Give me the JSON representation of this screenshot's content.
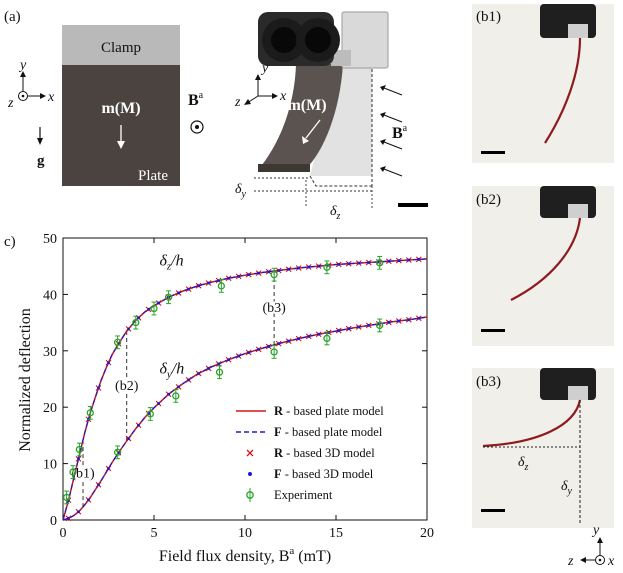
{
  "panel_labels": {
    "a": "(a)",
    "c": "c)",
    "b1": "(b1)",
    "b2": "(b2)",
    "b3": "(b3)"
  },
  "schematic": {
    "clamp": "Clamp",
    "plate": "Plate",
    "magnetization": "m(M)",
    "field": "B",
    "field_sup": "a",
    "gravity": "g",
    "axis_y": "y",
    "axis_x": "x",
    "axis_z": "z"
  },
  "photo": {
    "magnetization": "m(M)",
    "field": "B",
    "field_sup": "a",
    "delta_y": "δ",
    "delta_y_sub": "y",
    "delta_z": "δ",
    "delta_z_sub": "z",
    "axis_y": "y",
    "axis_x": "x",
    "axis_z": "z"
  },
  "b3_panel": {
    "delta_z": "δ",
    "delta_z_sub": "z",
    "delta_y": "δ",
    "delta_y_sub": "y",
    "axis_y": "y",
    "axis_x": "x",
    "axis_z": "z"
  },
  "colors": {
    "plate": "#4a4340",
    "clamp": "#b9b9b9",
    "model_R": "#d01818",
    "model_F": "#1a1ad0",
    "experiment": "#2aa32a",
    "photo_bg": "#f1efe9"
  },
  "chart_data": {
    "type": "line",
    "xlabel": "Field flux density, B",
    "xlabel_sup": "a",
    "xlabel_unit": " (mT)",
    "ylabel": "Normalized deflection",
    "xlim": [
      0,
      20
    ],
    "ylim": [
      0,
      50
    ],
    "xticks": [
      0,
      5,
      10,
      15,
      20
    ],
    "yticks": [
      0,
      10,
      20,
      30,
      40,
      50
    ],
    "grid": false,
    "legend_position": "bottom-right",
    "curve_labels": [
      {
        "text": "δz/h",
        "base": "δ",
        "sub": "z",
        "tail": "/h"
      },
      {
        "text": "δy/h",
        "base": "δ",
        "sub": "y",
        "tail": "/h"
      }
    ],
    "annotations": [
      {
        "label": "(b1)",
        "x": 1.1
      },
      {
        "label": "(b2)",
        "x": 3.5
      },
      {
        "label": "(b3)",
        "x": 11.6
      }
    ],
    "legend": [
      {
        "bold": "R",
        "text": " - based plate model",
        "style": "solid-red"
      },
      {
        "bold": "F",
        "text": " - based plate model",
        "style": "dashed-blue"
      },
      {
        "bold": "R",
        "text": " - based 3D model",
        "style": "x-red"
      },
      {
        "bold": "F",
        "text": " - based 3D model",
        "style": "dot-blue"
      },
      {
        "bold": "",
        "text": "Experiment",
        "style": "circle-green"
      }
    ],
    "series": [
      {
        "name": "δz/h",
        "x": [
          0,
          0.3,
          0.6,
          0.9,
          1.2,
          1.5,
          1.8,
          2.1,
          2.4,
          2.7,
          3.0,
          3.5,
          4.0,
          4.5,
          5.0,
          5.8,
          6.6,
          7.4,
          8.2,
          9.0,
          10.0,
          11.0,
          12.0,
          13.0,
          14.0,
          15.0,
          16.0,
          17.0,
          18.0,
          19.0,
          20.0
        ],
        "y": [
          0,
          3.5,
          7.5,
          11.5,
          15.5,
          19.0,
          22.0,
          24.8,
          27.2,
          29.3,
          31.0,
          33.5,
          35.4,
          36.9,
          38.0,
          39.5,
          40.6,
          41.5,
          42.2,
          42.8,
          43.4,
          43.9,
          44.3,
          44.7,
          45.0,
          45.3,
          45.5,
          45.7,
          45.9,
          46.1,
          46.3
        ]
      },
      {
        "name": "δy/h",
        "x": [
          0,
          0.3,
          0.6,
          0.9,
          1.2,
          1.5,
          1.8,
          2.1,
          2.4,
          2.7,
          3.0,
          3.5,
          4.0,
          4.5,
          5.0,
          5.8,
          6.6,
          7.4,
          8.2,
          9.0,
          10.0,
          11.0,
          12.0,
          13.0,
          14.0,
          15.0,
          16.0,
          17.0,
          18.0,
          19.0,
          20.0
        ],
        "y": [
          0,
          0.3,
          0.8,
          1.6,
          2.7,
          4.0,
          5.5,
          7.0,
          8.6,
          10.2,
          11.7,
          14.0,
          16.2,
          18.2,
          19.9,
          22.3,
          24.2,
          25.9,
          27.2,
          28.3,
          29.5,
          30.5,
          31.4,
          32.2,
          32.9,
          33.5,
          34.1,
          34.6,
          35.1,
          35.5,
          36.0
        ]
      }
    ],
    "experiment": {
      "name": "Experiment",
      "z_points": [
        [
          0.2,
          4.0
        ],
        [
          0.55,
          8.5
        ],
        [
          0.9,
          12.5
        ],
        [
          1.5,
          19.0
        ],
        [
          3.0,
          31.5
        ],
        [
          4.0,
          35.0
        ],
        [
          5.0,
          37.5
        ],
        [
          5.8,
          39.5
        ],
        [
          8.7,
          41.5
        ],
        [
          11.6,
          43.5
        ],
        [
          14.5,
          44.8
        ],
        [
          17.4,
          45.6
        ]
      ],
      "y_points": [
        [
          3.0,
          12.0
        ],
        [
          4.8,
          18.8
        ],
        [
          6.2,
          22.0
        ],
        [
          8.6,
          26.2
        ],
        [
          11.6,
          29.8
        ],
        [
          14.5,
          32.2
        ],
        [
          17.4,
          34.5
        ]
      ],
      "error": 0.6
    }
  }
}
